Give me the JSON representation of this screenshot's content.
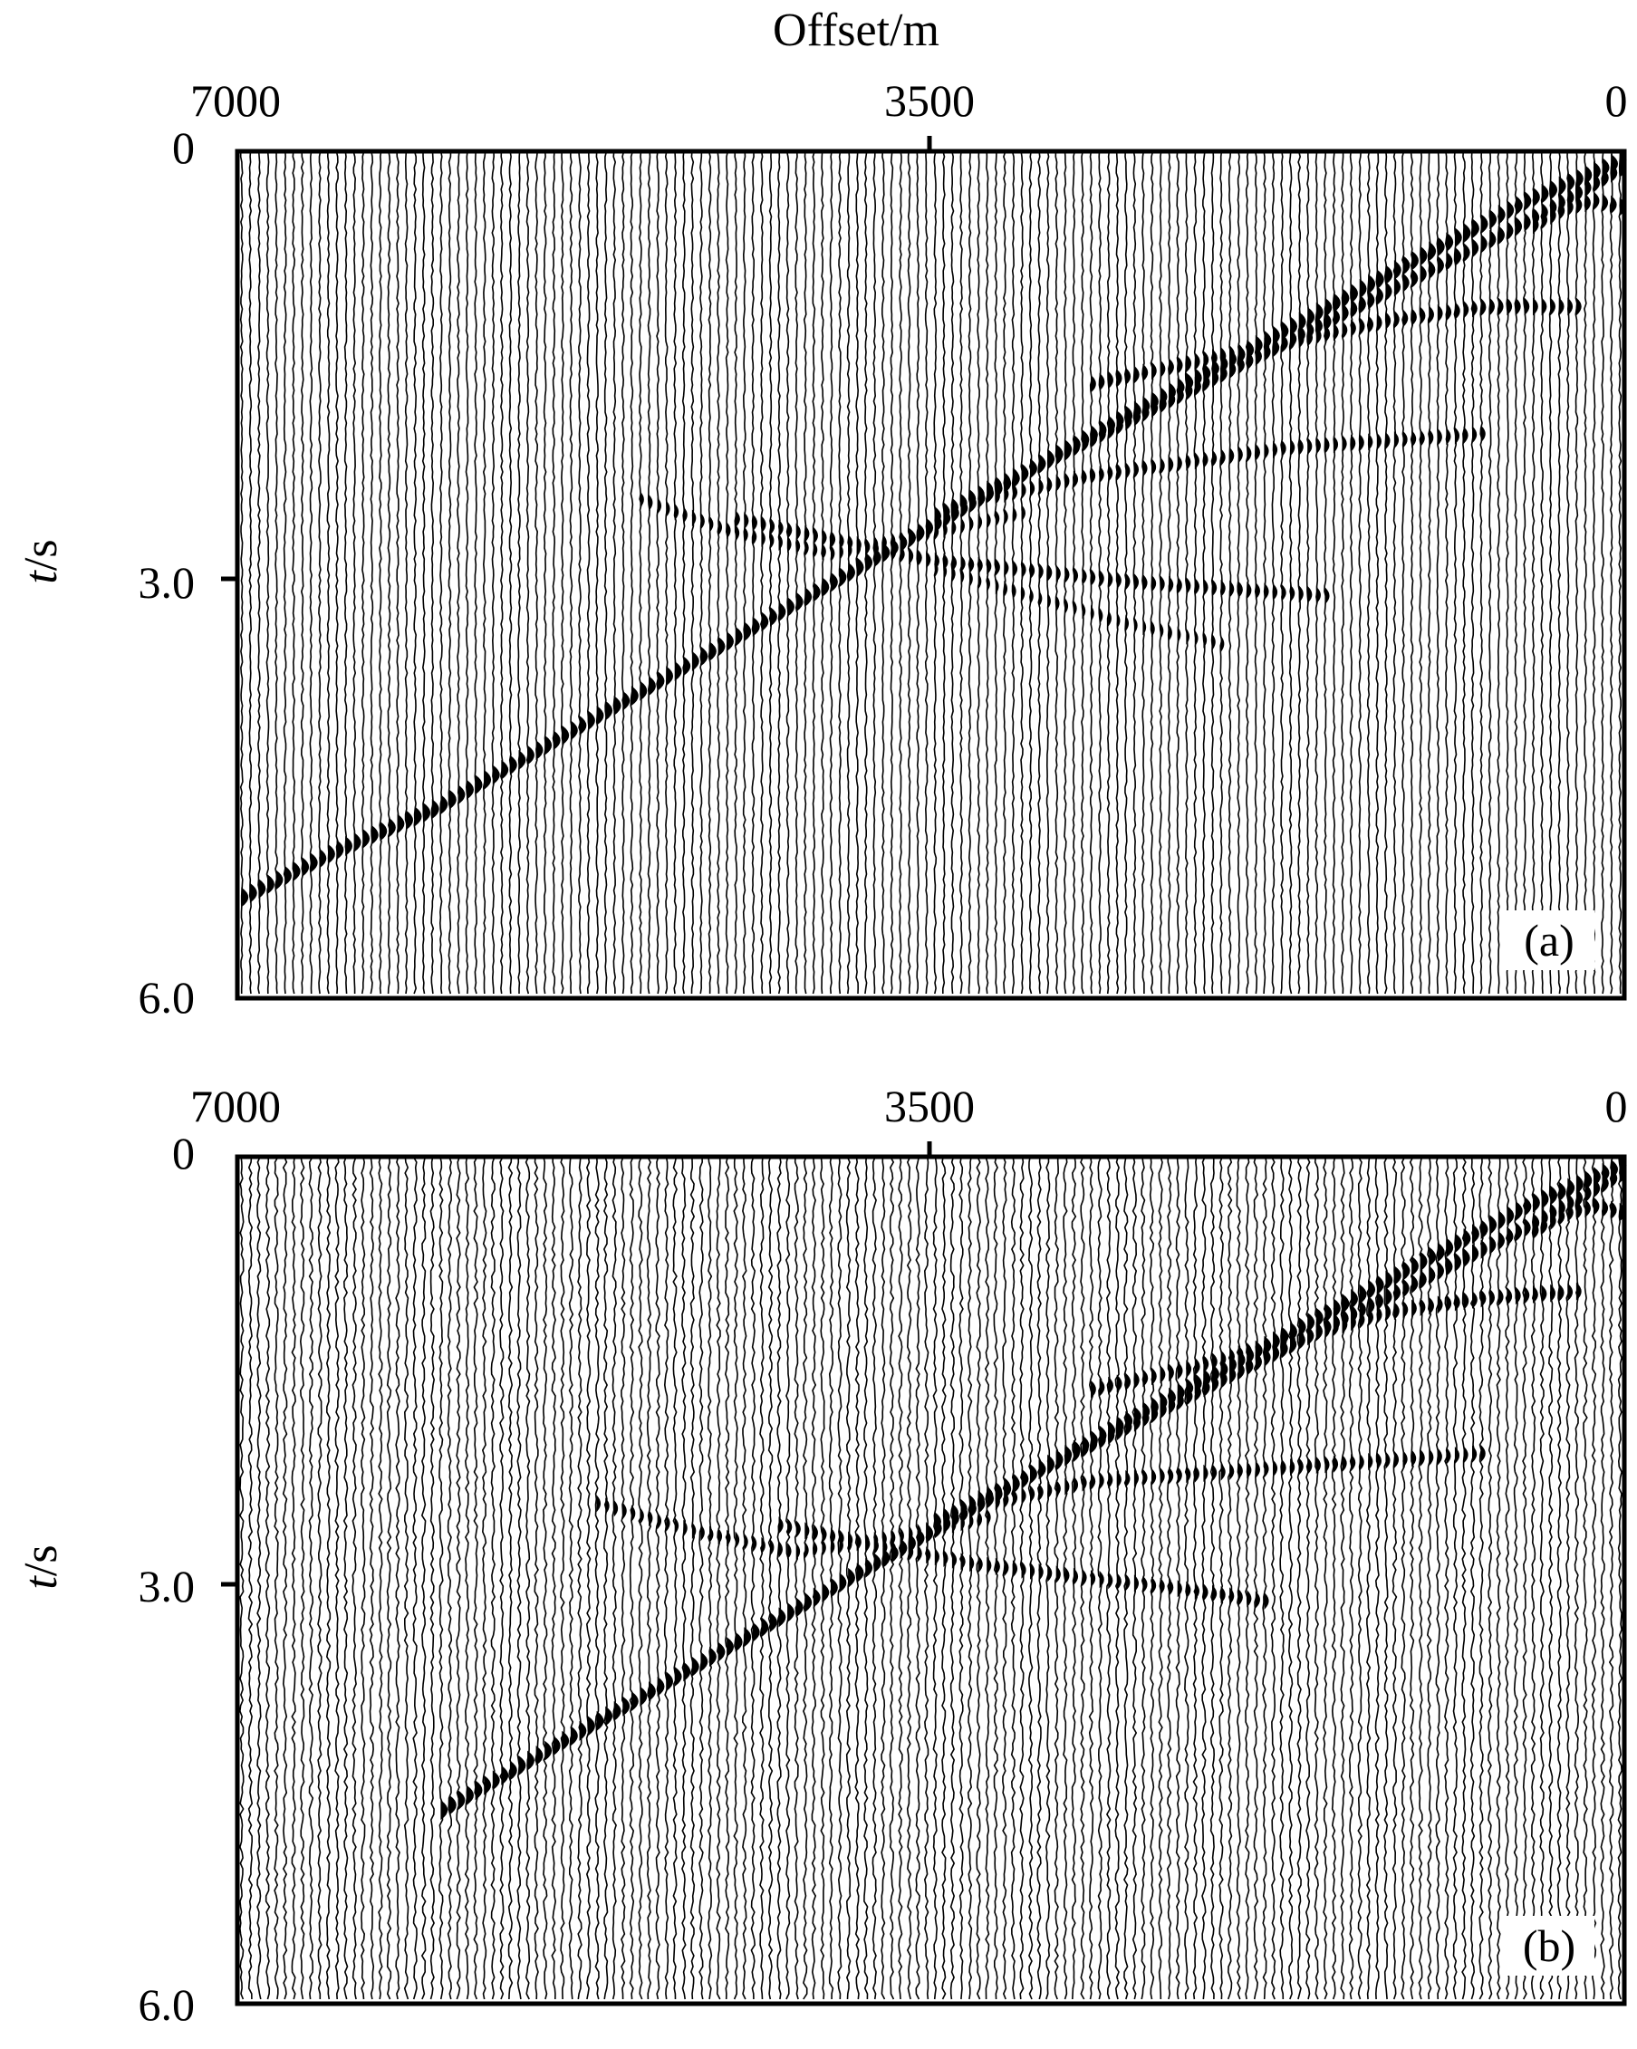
{
  "chart_data": [
    {
      "type": "seismic_gather",
      "panel_label": "(a)",
      "xlabel": "Offset/m",
      "ylabel_var": "t",
      "ylabel_unit": "/s",
      "x_ticks": [
        "7000",
        "3500",
        "0"
      ],
      "y_ticks": [
        "0",
        "3.0",
        "6.0"
      ],
      "xlim": [
        7000,
        0
      ],
      "ylim": [
        0,
        6.0
      ],
      "trace_count": 160,
      "noise_level": 0.25,
      "events": [
        {
          "name": "direct-wave",
          "x": [
            0,
            500,
            1000,
            1500,
            2000,
            2500,
            3000,
            3500,
            4000,
            4500,
            5000,
            5500,
            6000,
            6500,
            7000
          ],
          "t": [
            0.05,
            0.35,
            0.72,
            1.1,
            1.48,
            1.86,
            2.25,
            2.65,
            3.05,
            3.45,
            3.85,
            4.25,
            4.65,
            4.95,
            5.3
          ],
          "strength": 1.0
        },
        {
          "name": "refraction",
          "x": [
            0,
            500,
            1000,
            1500,
            2000,
            2500,
            3000,
            3500
          ],
          "t": [
            0.1,
            0.5,
            0.85,
            1.2,
            1.55,
            1.9,
            2.25,
            2.6
          ],
          "strength": 0.9
        },
        {
          "name": "reflection-1",
          "x": [
            200,
            700,
            1200,
            1700,
            2200,
            2700
          ],
          "t": [
            1.1,
            1.1,
            1.2,
            1.35,
            1.5,
            1.65
          ],
          "strength": 0.7
        },
        {
          "name": "reflection-2",
          "x": [
            700,
            1200,
            1700,
            2200,
            2700,
            3200
          ],
          "t": [
            2.0,
            2.05,
            2.1,
            2.2,
            2.3,
            2.45
          ],
          "strength": 0.6
        },
        {
          "name": "reflection-3",
          "x": [
            1500,
            2000,
            2500,
            3000,
            3500,
            4000,
            4500
          ],
          "t": [
            3.15,
            3.1,
            3.05,
            2.97,
            2.9,
            2.75,
            2.6
          ],
          "strength": 0.6
        },
        {
          "name": "reflection-4",
          "x": [
            3000,
            3500,
            4000,
            4500,
            5000
          ],
          "t": [
            2.55,
            2.7,
            2.85,
            2.7,
            2.45
          ],
          "strength": 0.5
        },
        {
          "name": "reflection-5",
          "x": [
            2000,
            2500,
            3000,
            3500
          ],
          "t": [
            3.5,
            3.35,
            3.15,
            2.95
          ],
          "strength": 0.4
        },
        {
          "name": "near-offset-arrival",
          "x": [
            0,
            150,
            300,
            500
          ],
          "t": [
            0.4,
            0.35,
            0.4,
            0.55
          ],
          "strength": 0.8
        }
      ]
    },
    {
      "type": "seismic_gather",
      "panel_label": "(b)",
      "xlabel": "",
      "ylabel_var": "t",
      "ylabel_unit": "/s",
      "x_ticks": [
        "7000",
        "3500",
        "0"
      ],
      "y_ticks": [
        "0",
        "3.0",
        "6.0"
      ],
      "xlim": [
        7000,
        0
      ],
      "ylim": [
        0,
        6.0
      ],
      "trace_count": 160,
      "noise_level": 0.45,
      "events": [
        {
          "name": "direct-wave",
          "x": [
            0,
            500,
            1000,
            1500,
            2000,
            2500,
            3000,
            3500,
            4000,
            4500,
            5000,
            5500,
            6000
          ],
          "t": [
            0.05,
            0.35,
            0.72,
            1.1,
            1.48,
            1.86,
            2.25,
            2.65,
            3.05,
            3.45,
            3.85,
            4.25,
            4.65
          ],
          "strength": 1.0
        },
        {
          "name": "refraction",
          "x": [
            0,
            500,
            1000,
            1500,
            2000,
            2500,
            3000,
            3500
          ],
          "t": [
            0.1,
            0.5,
            0.85,
            1.2,
            1.55,
            1.9,
            2.25,
            2.6
          ],
          "strength": 0.9
        },
        {
          "name": "reflection-1",
          "x": [
            200,
            700,
            1200,
            1700,
            2200,
            2700
          ],
          "t": [
            0.95,
            1.0,
            1.1,
            1.3,
            1.5,
            1.65
          ],
          "strength": 0.7
        },
        {
          "name": "reflection-2",
          "x": [
            700,
            1200,
            1700,
            2200,
            2700,
            3200
          ],
          "t": [
            2.1,
            2.15,
            2.2,
            2.25,
            2.3,
            2.45
          ],
          "strength": 0.6
        },
        {
          "name": "reflection-3",
          "x": [
            1800,
            2300,
            2800,
            3300,
            3800,
            4300
          ],
          "t": [
            3.15,
            3.05,
            2.97,
            2.88,
            2.75,
            2.6
          ],
          "strength": 0.6
        },
        {
          "name": "reflection-4",
          "x": [
            3200,
            3700,
            4200,
            4700,
            5200
          ],
          "t": [
            2.55,
            2.7,
            2.8,
            2.65,
            2.45
          ],
          "strength": 0.5
        },
        {
          "name": "near-offset-arrival",
          "x": [
            0,
            150,
            300,
            500
          ],
          "t": [
            0.4,
            0.35,
            0.4,
            0.55
          ],
          "strength": 0.8
        }
      ]
    }
  ]
}
